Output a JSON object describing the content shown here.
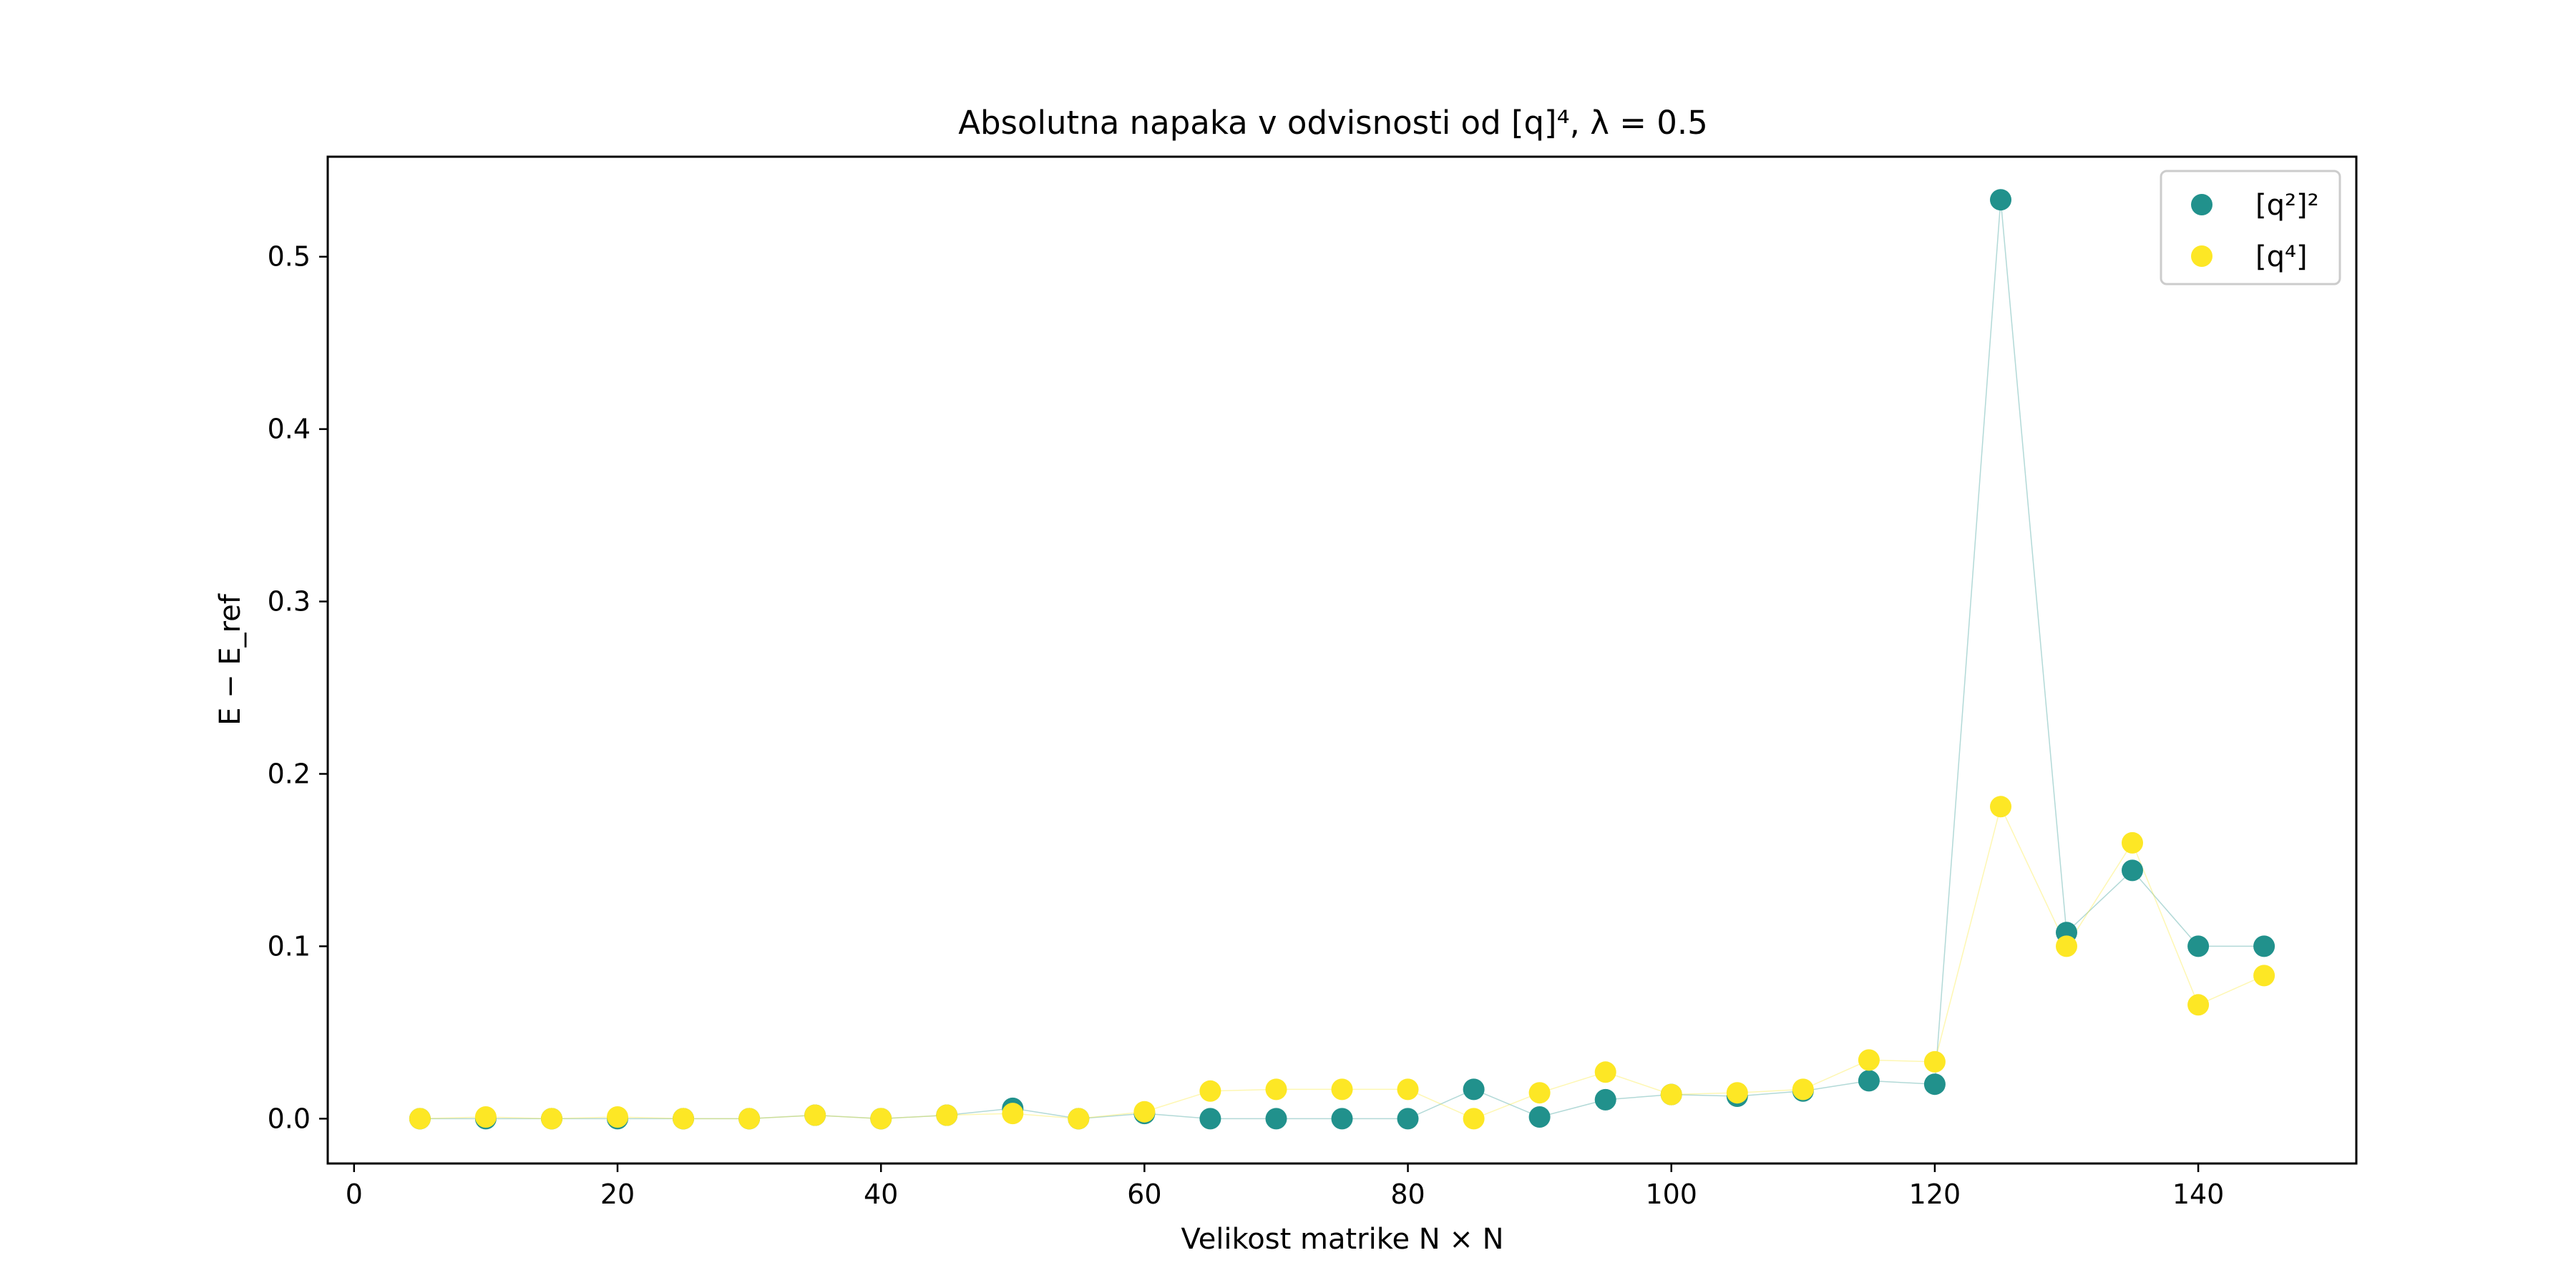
{
  "chart_data": {
    "type": "scatter",
    "title": "Absolutna napaka v odvisnosti od [q]⁴, λ = 0.5",
    "xlabel": "Velikost matrike N × N",
    "ylabel": "E − E_ref",
    "xlim": [
      -2.0,
      152.0
    ],
    "ylim": [
      -0.026,
      0.558
    ],
    "xticks": [
      0,
      20,
      40,
      60,
      80,
      100,
      120,
      140
    ],
    "yticks": [
      0.0,
      0.1,
      0.2,
      0.3,
      0.4,
      0.5
    ],
    "xtick_labels": [
      "0",
      "20",
      "40",
      "60",
      "80",
      "100",
      "120",
      "140"
    ],
    "ytick_labels": [
      "0.0",
      "0.1",
      "0.2",
      "0.3",
      "0.4",
      "0.5"
    ],
    "grid": false,
    "legend_position": "upper right",
    "x": [
      5,
      10,
      15,
      20,
      25,
      30,
      35,
      40,
      45,
      50,
      55,
      60,
      65,
      70,
      75,
      80,
      85,
      90,
      95,
      100,
      105,
      110,
      115,
      120,
      125,
      130,
      135,
      140,
      145
    ],
    "series": [
      {
        "name": "[q²]²",
        "color": "#21918c",
        "values": [
          0.0,
          0.0,
          0.0,
          0.0,
          0.0,
          0.0,
          0.002,
          0.0,
          0.002,
          0.006,
          0.0,
          0.003,
          0.0,
          0.0,
          0.0,
          0.0,
          0.017,
          0.001,
          0.011,
          0.014,
          0.013,
          0.016,
          0.022,
          0.02,
          0.533,
          0.108,
          0.144,
          0.1,
          0.1
        ]
      },
      {
        "name": "[q⁴]",
        "color": "#fde725",
        "values": [
          0.0,
          0.001,
          0.0,
          0.001,
          0.0,
          0.0,
          0.002,
          0.0,
          0.002,
          0.003,
          0.0,
          0.004,
          0.016,
          0.017,
          0.017,
          0.017,
          0.0,
          0.015,
          0.027,
          0.014,
          0.015,
          0.017,
          0.034,
          0.033,
          0.181,
          0.1,
          0.16,
          0.066,
          0.083
        ]
      }
    ]
  }
}
